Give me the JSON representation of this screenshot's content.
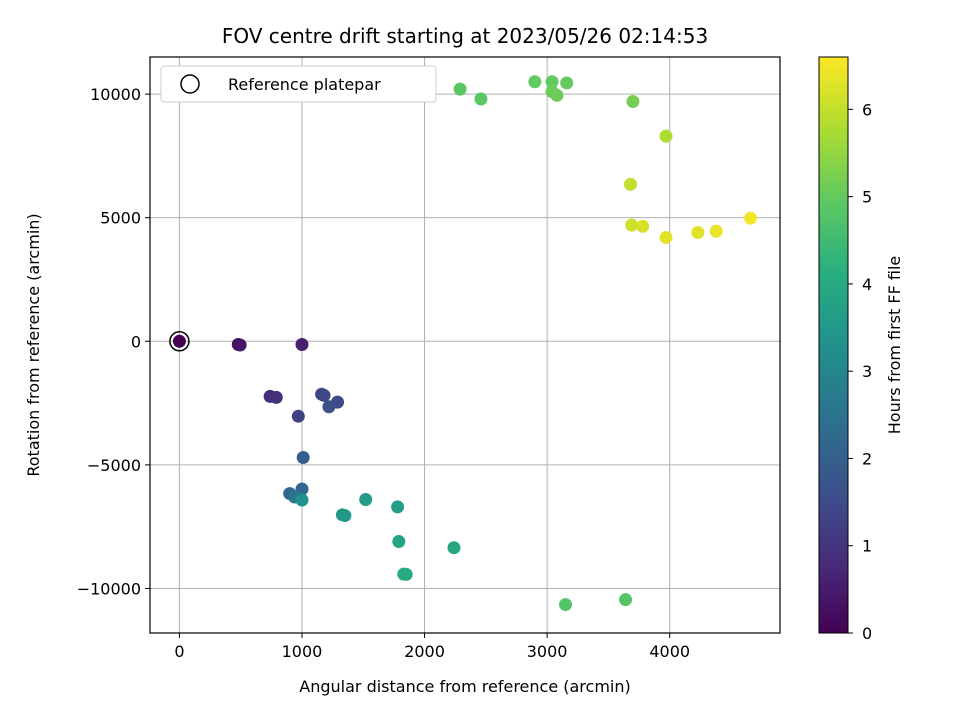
{
  "chart_data": {
    "type": "scatter",
    "title": "FOV centre drift starting at 2023/05/26 02:14:53",
    "xlabel": "Angular distance from reference (arcmin)",
    "ylabel": "Rotation from reference (arcmin)",
    "xlim": [
      -240,
      4900
    ],
    "ylim": [
      -11800,
      11500
    ],
    "xticks": [
      0,
      1000,
      2000,
      3000,
      4000
    ],
    "xtick_labels": [
      "0",
      "1000",
      "2000",
      "3000",
      "4000"
    ],
    "yticks": [
      -10000,
      -5000,
      0,
      5000,
      10000
    ],
    "ytick_labels": [
      "−10000",
      "−5000",
      "0",
      "5000",
      "10000"
    ],
    "grid": true,
    "legend": {
      "placement": "top-left",
      "entries": [
        "Reference platepar"
      ]
    },
    "reference_point": {
      "x": 0,
      "y": 0,
      "label": "Reference platepar"
    },
    "colorbar": {
      "label": "Hours from first FF file",
      "colormap": "viridis",
      "range": [
        0,
        6.6
      ],
      "ticks": [
        0,
        1,
        2,
        3,
        4,
        5,
        6
      ],
      "tick_labels": [
        "0",
        "1",
        "2",
        "3",
        "4",
        "5",
        "6"
      ]
    },
    "points": [
      {
        "x": 0,
        "y": 0,
        "hours": 0.0
      },
      {
        "x": 480,
        "y": -130,
        "hours": 0.3
      },
      {
        "x": 495,
        "y": -150,
        "hours": 0.4
      },
      {
        "x": 1000,
        "y": -130,
        "hours": 0.6
      },
      {
        "x": 740,
        "y": -2230,
        "hours": 0.8
      },
      {
        "x": 790,
        "y": -2270,
        "hours": 0.9
      },
      {
        "x": 970,
        "y": -3030,
        "hours": 1.3
      },
      {
        "x": 1160,
        "y": -2140,
        "hours": 1.4
      },
      {
        "x": 1180,
        "y": -2190,
        "hours": 1.4
      },
      {
        "x": 1290,
        "y": -2460,
        "hours": 1.5
      },
      {
        "x": 1220,
        "y": -2650,
        "hours": 1.6
      },
      {
        "x": 1010,
        "y": -4700,
        "hours": 2.0
      },
      {
        "x": 900,
        "y": -6160,
        "hours": 2.2
      },
      {
        "x": 1000,
        "y": -5980,
        "hours": 2.2
      },
      {
        "x": 940,
        "y": -6300,
        "hours": 2.5
      },
      {
        "x": 1000,
        "y": -6420,
        "hours": 3.3
      },
      {
        "x": 1330,
        "y": -7020,
        "hours": 3.5
      },
      {
        "x": 1350,
        "y": -7050,
        "hours": 3.5
      },
      {
        "x": 1520,
        "y": -6400,
        "hours": 3.6
      },
      {
        "x": 1780,
        "y": -6700,
        "hours": 3.7
      },
      {
        "x": 1790,
        "y": -8100,
        "hours": 3.8
      },
      {
        "x": 2240,
        "y": -8350,
        "hours": 3.9
      },
      {
        "x": 1830,
        "y": -9420,
        "hours": 4.0
      },
      {
        "x": 1850,
        "y": -9430,
        "hours": 4.0
      },
      {
        "x": 3150,
        "y": -10650,
        "hours": 4.8
      },
      {
        "x": 3640,
        "y": -10450,
        "hours": 4.8
      },
      {
        "x": 2290,
        "y": 10200,
        "hours": 4.9
      },
      {
        "x": 2460,
        "y": 9800,
        "hours": 4.9
      },
      {
        "x": 2900,
        "y": 10500,
        "hours": 5.0
      },
      {
        "x": 3040,
        "y": 10500,
        "hours": 5.0
      },
      {
        "x": 3160,
        "y": 10450,
        "hours": 5.0
      },
      {
        "x": 3040,
        "y": 10100,
        "hours": 5.1
      },
      {
        "x": 3080,
        "y": 9950,
        "hours": 5.1
      },
      {
        "x": 3700,
        "y": 9700,
        "hours": 5.2
      },
      {
        "x": 3970,
        "y": 8300,
        "hours": 5.8
      },
      {
        "x": 3680,
        "y": 6350,
        "hours": 6.0
      },
      {
        "x": 3690,
        "y": 4700,
        "hours": 6.1
      },
      {
        "x": 3780,
        "y": 4650,
        "hours": 6.2
      },
      {
        "x": 3970,
        "y": 4200,
        "hours": 6.3
      },
      {
        "x": 4230,
        "y": 4400,
        "hours": 6.3
      },
      {
        "x": 4380,
        "y": 4450,
        "hours": 6.4
      },
      {
        "x": 4660,
        "y": 4980,
        "hours": 6.5
      }
    ]
  }
}
